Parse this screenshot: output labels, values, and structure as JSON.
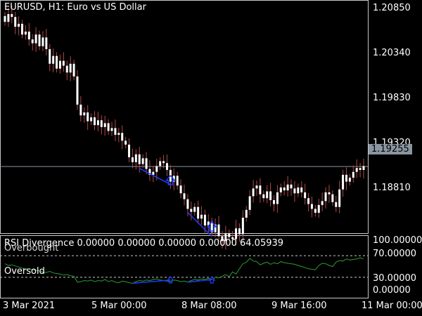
{
  "header": {
    "symbol_title": "EURUSD, H1:  Euro vs US Dollar"
  },
  "indicator": {
    "title": "RSI Divergence 0.00000 0.00000 0.00000 0.00000 64.05939",
    "overbought_label": "Overbought",
    "oversold_label": "Oversold"
  },
  "price_axis": {
    "ticks": [
      "1.20850",
      "1.20340",
      "1.19830",
      "1.19320",
      "1.18810"
    ],
    "current_price": "1.19255"
  },
  "rsi_axis": {
    "ticks": [
      "100.00000",
      "70.00000",
      "30.00000",
      "0.00000"
    ]
  },
  "time_axis": {
    "ticks": [
      "3 Mar 2021",
      "5 Mar 00:00",
      "8 Mar 08:00",
      "9 Mar 16:00",
      "11 Mar 00:00"
    ]
  },
  "colors": {
    "background": "#000000",
    "candle_wick": "#b04a4a",
    "candle_body": "#ffffff",
    "rsi_line": "#2e9a2e",
    "divergence_line": "#1e3cff",
    "arrow": "#1e3cff",
    "grid_dashed": "#c8c8c8",
    "frame": "#c8c8c8",
    "current_price_line": "#8a95a0"
  },
  "chart_data": {
    "type": "line",
    "price_closes": [
      1.2074,
      1.2082,
      1.2079,
      1.2069,
      1.2072,
      1.2061,
      1.2064,
      1.2056,
      1.2052,
      1.2061,
      1.2049,
      1.2058,
      1.2046,
      1.2031,
      1.2039,
      1.2026,
      1.2034,
      1.2029,
      1.2022,
      1.2031,
      1.2018,
      1.1989,
      1.1978,
      1.1981,
      1.1972,
      1.1976,
      1.1968,
      1.1973,
      1.1966,
      1.197,
      1.1962,
      1.1965,
      1.1958,
      1.196,
      1.1952,
      1.1948,
      1.1935,
      1.193,
      1.1938,
      1.1928,
      1.1934,
      1.1923,
      1.1917,
      1.192,
      1.1926,
      1.1931,
      1.1929,
      1.1922,
      1.191,
      1.1916,
      1.1906,
      1.1898,
      1.1892,
      1.1882,
      1.1879,
      1.1884,
      1.1872,
      1.1876,
      1.1865,
      1.1869,
      1.1858,
      1.1866,
      1.1854,
      1.1849,
      1.1857,
      1.1853,
      1.1851,
      1.1862,
      1.1856,
      1.1873,
      1.1881,
      1.1895,
      1.1903,
      1.1906,
      1.1897,
      1.1893,
      1.19,
      1.1891,
      1.1887,
      1.1899,
      1.1904,
      1.1901,
      1.1907,
      1.1903,
      1.1898,
      1.1904,
      1.1899,
      1.1893,
      1.1887,
      1.1882,
      1.1878,
      1.1886,
      1.189,
      1.1899,
      1.1897,
      1.1889,
      1.1884,
      1.1902,
      1.1917,
      1.191,
      1.1914,
      1.192,
      1.1924,
      1.1922,
      1.1926
    ],
    "rsi_values": [
      55,
      52,
      53,
      51,
      49,
      47,
      45,
      46,
      44,
      43,
      42,
      40,
      39,
      41,
      38,
      37,
      36,
      34,
      35,
      33,
      32,
      21,
      22,
      24,
      23,
      25,
      22,
      24,
      23,
      26,
      22,
      24,
      21,
      20,
      23,
      22,
      20,
      19,
      22,
      24,
      23,
      25,
      24,
      26,
      27,
      25,
      24,
      23,
      22,
      25,
      24,
      22,
      23,
      21,
      24,
      26,
      25,
      27,
      26,
      28,
      26,
      30,
      29,
      32,
      35,
      31,
      40,
      36,
      46,
      55,
      58,
      65,
      60,
      59,
      53,
      56,
      58,
      54,
      57,
      55,
      59,
      57,
      56,
      55,
      54,
      52,
      50,
      48,
      46,
      45,
      44,
      52,
      56,
      55,
      52,
      50,
      58,
      61,
      60,
      64,
      62,
      63,
      64,
      66,
      64
    ],
    "price_ylim": [
      1.186,
      1.2095
    ],
    "rsi_ylim": [
      0,
      100
    ],
    "rsi_levels": [
      70,
      30
    ]
  }
}
